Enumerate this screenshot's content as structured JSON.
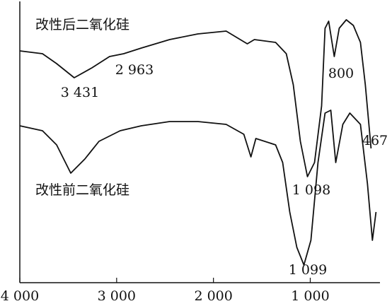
{
  "chart_data": {
    "type": "line",
    "series": [
      {
        "name": "改性后二氧化硅",
        "color": "#111111",
        "x": [
          4000,
          3766,
          3620,
          3438,
          3255,
          3073,
          2927,
          2745,
          2453,
          2161,
          1869,
          1650,
          1577,
          1358,
          1248,
          1175,
          1102,
          1029,
          956,
          883,
          847,
          810,
          752,
          701,
          628,
          555,
          482,
          431,
          372
        ],
        "values": [
          82,
          81,
          77.5,
          72.5,
          76,
          80,
          81,
          83,
          86,
          88,
          89,
          84.5,
          86,
          85,
          81,
          70,
          50,
          37.5,
          42.5,
          62.5,
          90,
          92.5,
          80,
          90,
          93,
          91,
          85,
          70,
          47.5
        ]
      },
      {
        "name": "改性前二氧化硅",
        "color": "#111111",
        "x": [
          4000,
          3766,
          3620,
          3474,
          3328,
          3182,
          2964,
          2745,
          2453,
          2161,
          1869,
          1686,
          1613,
          1562,
          1358,
          1285,
          1212,
          1139,
          1066,
          993,
          920,
          847,
          788,
          737,
          664,
          591,
          482,
          409,
          358,
          321
        ],
        "values": [
          55.5,
          53.75,
          48.75,
          38.75,
          43.75,
          50,
          53.75,
          55.5,
          57,
          57,
          56,
          52.5,
          44.5,
          51,
          48.75,
          42.5,
          25,
          12.5,
          6.25,
          15,
          42.5,
          60,
          61,
          42.5,
          56,
          60,
          56,
          35,
          15,
          25
        ]
      }
    ],
    "annotations": [
      "3 431",
      "2 963",
      "800",
      "467",
      "1 098",
      "1 099"
    ],
    "xlim": [
      4000,
      280
    ],
    "ylim": [
      0,
      100
    ],
    "xticks": [
      {
        "value": 4000,
        "label": "4 000"
      },
      {
        "value": 3000,
        "label": "3 000"
      },
      {
        "value": 2000,
        "label": "2 000"
      },
      {
        "value": 1000,
        "label": "1 000"
      }
    ]
  }
}
